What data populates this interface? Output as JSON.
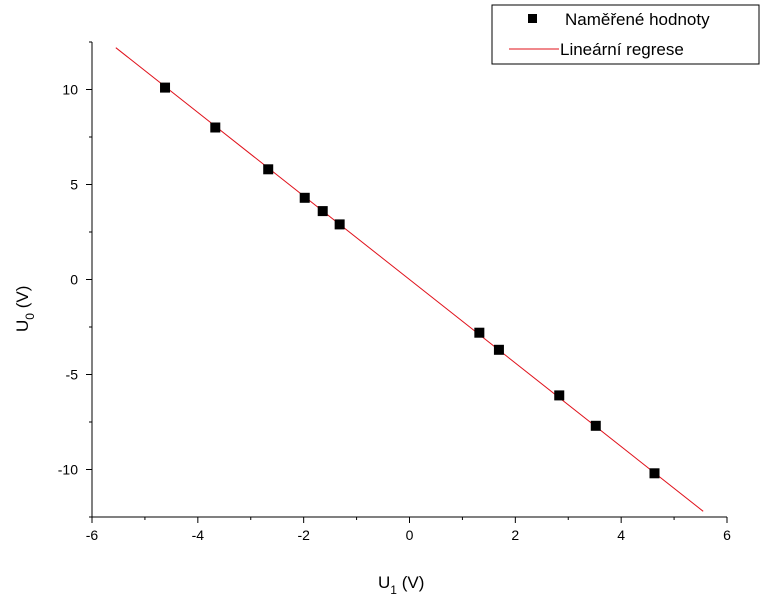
{
  "chart_data": {
    "type": "scatter",
    "xlabel": {
      "base": "U",
      "sub": "1",
      "unit": " (V)"
    },
    "ylabel": {
      "base": "U",
      "sub": "0",
      "unit": " (V)"
    },
    "xlim": [
      -6,
      6
    ],
    "ylim": [
      -12.5,
      12.5
    ],
    "xticks": [
      -6,
      -4,
      -2,
      0,
      2,
      4,
      6
    ],
    "yticks": [
      -10,
      -5,
      0,
      5,
      10
    ],
    "xtick_labels": [
      "-6",
      "-4",
      "-2",
      "0",
      "2",
      "4",
      "6"
    ],
    "ytick_labels": [
      "-10",
      "-5",
      "0",
      "5",
      "10"
    ],
    "grid": false,
    "legend_position": "top-right",
    "series": [
      {
        "name": "Naměřené hodnoty",
        "kind": "points",
        "marker": "square",
        "color": "#000000",
        "x": [
          -4.62,
          -3.67,
          -2.67,
          -1.98,
          -1.64,
          -1.32,
          1.32,
          1.69,
          2.83,
          3.52,
          4.63
        ],
        "y": [
          10.1,
          8.0,
          5.8,
          4.3,
          3.6,
          2.9,
          -2.8,
          -3.7,
          -6.1,
          -7.7,
          -10.2
        ]
      },
      {
        "name": "Lineární regrese",
        "kind": "line",
        "color": "#e0101a",
        "x": [
          -5.55,
          5.55
        ],
        "y": [
          12.2,
          -12.2
        ]
      }
    ]
  }
}
